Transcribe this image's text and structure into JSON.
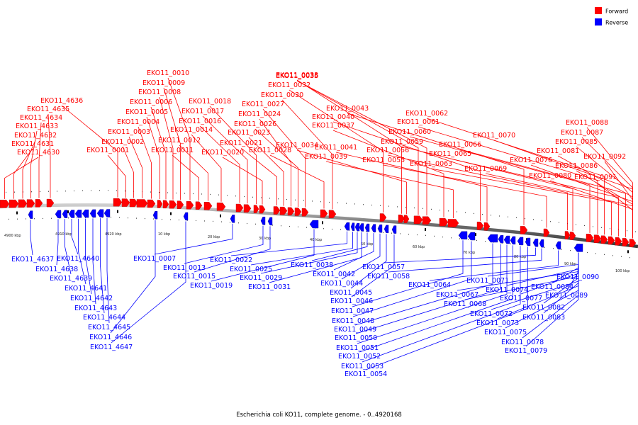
{
  "legend": {
    "forward": {
      "label": "Forward",
      "color": "#ff0000"
    },
    "reverse": {
      "label": "Reverse",
      "color": "#0000ff"
    }
  },
  "caption": "Escherichia coli KO11, complete genome. - 0..4920168",
  "ticks": [
    "4900 kbp",
    "4910 kbp",
    "4920 kbp",
    "10 kbp",
    "20 kbp",
    "30 kbp",
    "40 kbp",
    "50 kbp",
    "60 kbp",
    "70 kbp",
    "80 kbp",
    "90 kbp",
    "100 kbp"
  ],
  "forward_genes": [
    "EKO11_4630",
    "EKO11_4631",
    "EKO11_4632",
    "EKO11_4633",
    "EKO11_4634",
    "EKO11_4635",
    "EKO11_4636",
    "EKO11_0001",
    "EKO11_0002",
    "EKO11_0003",
    "EKO11_0004",
    "EKO11_0005",
    "EKO11_0006",
    "EKO11_0008",
    "EKO11_0009",
    "EKO11_0010",
    "EKO11_0011",
    "EKO11_0012",
    "EKO11_0014",
    "EKO11_0016",
    "EKO11_0017",
    "EKO11_0018",
    "EKO11_0020",
    "EKO11_0021",
    "EKO11_0023",
    "EKO11_0024",
    "EKO11_0026",
    "EKO11_0027",
    "EKO11_0028",
    "EKO11_0030",
    "EKO11_0032",
    "EKO11_0033",
    "EKO11_0034",
    "EKO11_0035",
    "EKO11_0036",
    "EKO11_0037",
    "EKO11_0039",
    "EKO11_0040",
    "EKO11_0041",
    "EKO11_0043",
    "EKO11_0055",
    "EKO11_0056",
    "EKO11_0059",
    "EKO11_0060",
    "EKO11_0061",
    "EKO11_0062",
    "EKO11_0063",
    "EKO11_0065",
    "EKO11_0066",
    "EKO11_0069",
    "EKO11_0070",
    "EKO11_0076",
    "EKO11_0080",
    "EKO11_0081",
    "EKO11_0085",
    "EKO11_0086",
    "EKO11_0087",
    "EKO11_0088",
    "EKO11_0091",
    "EKO11_0092"
  ],
  "reverse_genes": [
    "EKO11_4637",
    "EKO11_4638",
    "EKO11_4639",
    "EKO11_4640",
    "EKO11_4641",
    "EKO11_4642",
    "EKO11_4643",
    "EKO11_4644",
    "EKO11_4645",
    "EKO11_4646",
    "EKO11_4647",
    "EKO11_0007",
    "EKO11_0013",
    "EKO11_0015",
    "EKO11_0019",
    "EKO11_0022",
    "EKO11_0025",
    "EKO11_0029",
    "EKO11_0031",
    "EKO11_0038",
    "EKO11_0042",
    "EKO11_0044",
    "EKO11_0045",
    "EKO11_0046",
    "EKO11_0047",
    "EKO11_0048",
    "EKO11_0049",
    "EKO11_0050",
    "EKO11_0051",
    "EKO11_0052",
    "EKO11_0053",
    "EKO11_0054",
    "EKO11_0057",
    "EKO11_0058",
    "EKO11_0064",
    "EKO11_0067",
    "EKO11_0068",
    "EKO11_0071",
    "EKO11_0072",
    "EKO11_0073",
    "EKO11_0074",
    "EKO11_0075",
    "EKO11_0077",
    "EKO11_0078",
    "EKO11_0079",
    "EKO11_0082",
    "EKO11_0083",
    "EKO11_0084",
    "EKO11_0089",
    "EKO11_0090"
  ]
}
